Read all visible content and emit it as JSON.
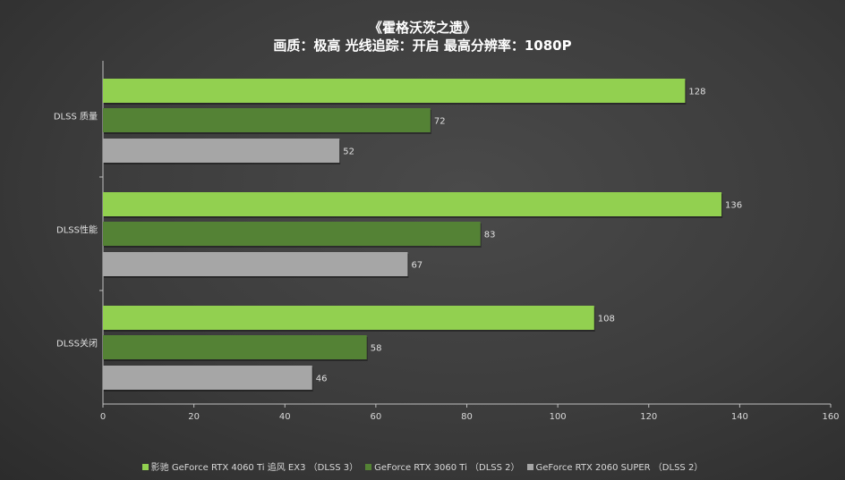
{
  "chart_data": {
    "type": "bar",
    "orientation": "horizontal",
    "title": "《霍格沃茨之遗》",
    "subtitle": "画质：极高  光线追踪：开启  最高分辨率：1080P",
    "categories": [
      "DLSS 质量",
      "DLSS性能",
      "DLSS关闭"
    ],
    "series": [
      {
        "name": "影驰 GeForce RTX 4060 Ti 追风 EX3 （DLSS 3）",
        "color": "#92d050",
        "values": [
          128,
          136,
          108
        ]
      },
      {
        "name": "GeForce RTX 3060 Ti （DLSS 2）",
        "color": "#548235",
        "values": [
          72,
          83,
          58
        ]
      },
      {
        "name": "GeForce RTX 2060 SUPER （DLSS 2）",
        "color": "#a6a6a6",
        "values": [
          52,
          67,
          46
        ]
      }
    ],
    "xlim": [
      0,
      160
    ],
    "xticks": [
      0,
      20,
      40,
      60,
      80,
      100,
      120,
      140,
      160
    ],
    "grid": false,
    "legend": "bottom"
  }
}
